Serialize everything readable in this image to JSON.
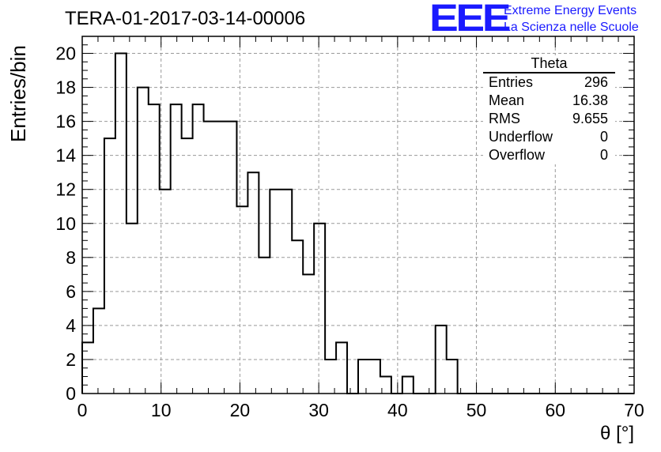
{
  "chart_data": {
    "type": "histogram",
    "title": "TERA-01-2017-03-14-00006",
    "xlabel": "θ [°]",
    "ylabel": "Entries/bin",
    "xlim": [
      0,
      70
    ],
    "ylim": [
      0,
      21
    ],
    "bin_width": 1.4,
    "x_ticks": [
      0,
      10,
      20,
      30,
      40,
      50,
      60,
      70
    ],
    "y_ticks": [
      0,
      2,
      4,
      6,
      8,
      10,
      12,
      14,
      16,
      18,
      20
    ],
    "grid": true,
    "values": [
      3,
      5,
      15,
      20,
      10,
      18,
      17,
      12,
      17,
      15,
      17,
      16,
      16,
      16,
      11,
      13,
      8,
      12,
      12,
      9,
      7,
      10,
      2,
      3,
      0,
      2,
      2,
      1,
      0,
      1,
      0,
      0,
      4,
      2,
      0,
      0,
      0,
      0,
      0,
      0,
      0,
      0,
      0,
      0,
      0,
      0,
      0,
      0,
      0,
      0
    ],
    "stats": {
      "title": "Theta",
      "rows": [
        {
          "label": "Entries",
          "value": "296"
        },
        {
          "label": "Mean",
          "value": "16.38"
        },
        {
          "label": "RMS",
          "value": "9.655"
        },
        {
          "label": "Underflow",
          "value": "0"
        },
        {
          "label": "Overflow",
          "value": "0"
        }
      ]
    }
  },
  "logo": {
    "mark": "EEE",
    "line1": "Extreme Energy Events",
    "line2": "La Scienza nelle Scuole"
  }
}
